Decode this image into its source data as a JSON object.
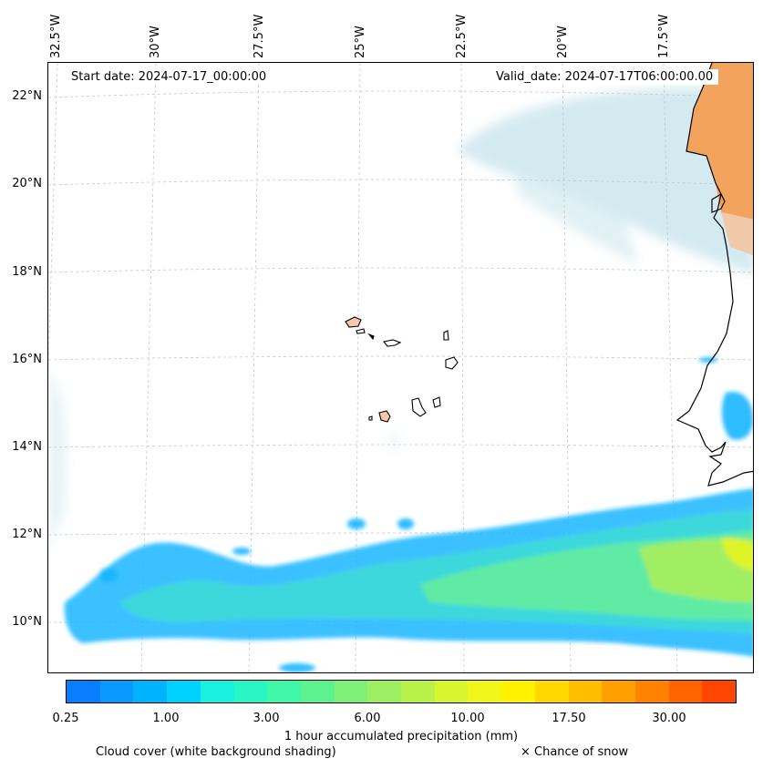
{
  "map": {
    "start_date": "Start date: 2024-07-17_00:00:00",
    "valid_date": "Valid_date: 2024-07-17T06:00:00.00",
    "lon_labels": [
      "32.5°W",
      "30°W",
      "27.5°W",
      "25°W",
      "22.5°W",
      "20°W",
      "17.5°W"
    ],
    "lat_labels": [
      "22°N",
      "20°N",
      "18°N",
      "16°N",
      "14°N",
      "12°N",
      "10°N"
    ],
    "gridlines": true,
    "projection_lat_range": [
      9,
      22.8
    ],
    "projection_lon_range": [
      -32.6,
      -15.4
    ]
  },
  "colorbar": {
    "colors": [
      "#0a7cff",
      "#0a99ff",
      "#00b3ff",
      "#00d2ff",
      "#19f0e0",
      "#2af5c5",
      "#40f7a8",
      "#5ef28e",
      "#7ef078",
      "#9cef62",
      "#baf04a",
      "#d8f530",
      "#f0f51a",
      "#fff200",
      "#ffd800",
      "#ffbe00",
      "#ffa000",
      "#ff8200",
      "#ff6400",
      "#ff4500"
    ],
    "tick_labels": [
      "0.25",
      "1.00",
      "3.00",
      "6.00",
      "10.00",
      "17.50",
      "30.00"
    ],
    "title": "1 hour accumulated precipitation (mm)"
  },
  "legend": {
    "cloud_cover": "Cloud cover (white background shading)",
    "snow": "× Chance of snow"
  }
}
